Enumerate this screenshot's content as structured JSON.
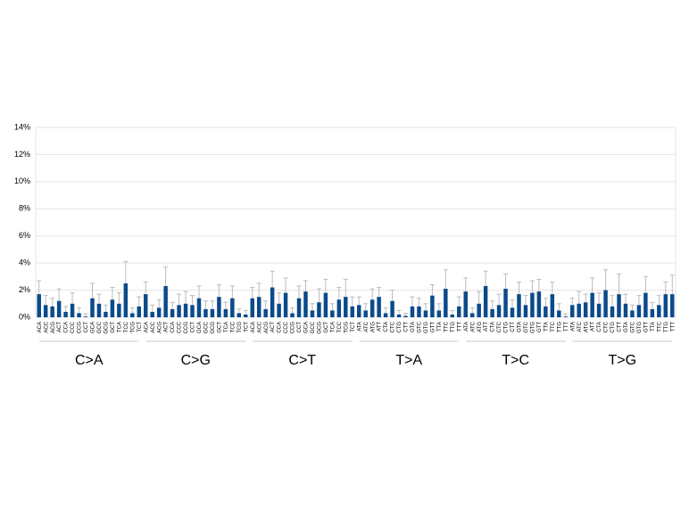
{
  "chart_data": {
    "type": "bar",
    "categories": [
      "ACA",
      "ACC",
      "ACG",
      "ACT",
      "CCA",
      "CCC",
      "CCG",
      "CCT",
      "GCA",
      "GCC",
      "GCG",
      "GCT",
      "TCA",
      "TCC",
      "TCG",
      "TCT",
      "ACA",
      "ACC",
      "ACG",
      "ACT",
      "CCA",
      "CCC",
      "CCG",
      "CCT",
      "GCA",
      "GCC",
      "GCG",
      "GCT",
      "TCA",
      "TCC",
      "TCG",
      "TCT",
      "ACA",
      "ACC",
      "ACG",
      "ACT",
      "CCA",
      "CCC",
      "CCG",
      "CCT",
      "GCA",
      "GCC",
      "GCG",
      "GCT",
      "TCA",
      "TCC",
      "TCG",
      "TCT",
      "ATA",
      "ATC",
      "ATG",
      "ATT",
      "CTA",
      "CTC",
      "CTG",
      "CTT",
      "GTA",
      "GTC",
      "GTG",
      "GTT",
      "TTA",
      "TTC",
      "TTG",
      "TTT",
      "ATA",
      "ATC",
      "ATG",
      "ATT",
      "CTA",
      "CTC",
      "CTG",
      "CTT",
      "GTA",
      "GTC",
      "GTG",
      "GTT",
      "TTA",
      "TTC",
      "TTG",
      "TTT",
      "ATA",
      "ATC",
      "ATG",
      "ATT",
      "CTA",
      "CTC",
      "CTG",
      "CTT",
      "GTA",
      "GTC",
      "GTG",
      "GTT",
      "TTA",
      "TTC",
      "TTG",
      "TTT"
    ],
    "groups": [
      "C>A",
      "C>G",
      "C>T",
      "T>A",
      "T>C",
      "T>G"
    ],
    "values": [
      1.7,
      0.9,
      0.8,
      1.2,
      0.4,
      1.0,
      0.3,
      0.05,
      1.4,
      1.0,
      0.4,
      1.3,
      1.0,
      2.5,
      0.3,
      0.8,
      1.7,
      0.4,
      0.7,
      2.3,
      0.6,
      0.9,
      1.0,
      0.9,
      1.4,
      0.6,
      0.6,
      1.5,
      0.6,
      1.4,
      0.3,
      0.2,
      1.4,
      1.5,
      0.6,
      2.2,
      1.0,
      1.8,
      0.3,
      1.4,
      1.9,
      0.5,
      1.1,
      1.8,
      0.5,
      1.3,
      1.5,
      0.8,
      0.9,
      0.5,
      1.3,
      1.5,
      0.3,
      1.2,
      0.2,
      0.1,
      0.8,
      0.8,
      0.5,
      1.6,
      0.5,
      2.1,
      0.2,
      0.8,
      1.9,
      0.3,
      1.0,
      2.3,
      0.6,
      0.9,
      2.1,
      0.7,
      1.7,
      0.9,
      1.8,
      1.9,
      0.8,
      1.7,
      0.5,
      0.05,
      0.9,
      1.0,
      1.1,
      1.8,
      1.0,
      2.0,
      0.8,
      1.7,
      1.0,
      0.5,
      0.9,
      1.8,
      0.6,
      0.9,
      1.7,
      1.7
    ],
    "errors": [
      1.0,
      0.7,
      0.6,
      0.9,
      0.4,
      0.8,
      0.4,
      0.2,
      1.1,
      0.7,
      0.5,
      0.9,
      0.8,
      1.6,
      0.4,
      0.7,
      0.9,
      0.5,
      0.6,
      1.4,
      0.5,
      0.8,
      0.9,
      0.7,
      0.9,
      0.6,
      0.6,
      0.9,
      0.5,
      0.9,
      0.3,
      0.3,
      0.8,
      1.0,
      0.6,
      1.2,
      0.8,
      1.1,
      0.4,
      0.9,
      0.8,
      0.5,
      1.0,
      1.0,
      0.5,
      0.9,
      1.3,
      0.7,
      0.6,
      0.5,
      0.8,
      0.7,
      0.4,
      0.8,
      0.3,
      0.2,
      0.7,
      0.6,
      0.5,
      0.8,
      0.5,
      1.4,
      0.3,
      0.7,
      1.0,
      0.4,
      0.9,
      1.1,
      0.6,
      0.8,
      1.1,
      0.6,
      0.9,
      0.7,
      0.9,
      0.9,
      0.6,
      0.9,
      0.5,
      0.2,
      0.5,
      0.9,
      0.6,
      1.1,
      0.8,
      1.5,
      0.8,
      1.5,
      0.7,
      0.4,
      0.7,
      1.2,
      0.5,
      0.7,
      0.9,
      1.4
    ],
    "color": "#0b4a8b",
    "error_color": "#bbbbbb",
    "ylim": [
      0,
      14
    ],
    "yticks": [
      {
        "value": 0,
        "label": "0%"
      },
      {
        "value": 2,
        "label": "2%"
      },
      {
        "value": 4,
        "label": "4%"
      },
      {
        "value": 6,
        "label": "6%"
      },
      {
        "value": 8,
        "label": "8%"
      },
      {
        "value": 10,
        "label": "10%"
      },
      {
        "value": 12,
        "label": "12%"
      },
      {
        "value": 14,
        "label": "14%"
      }
    ],
    "grid": true
  }
}
